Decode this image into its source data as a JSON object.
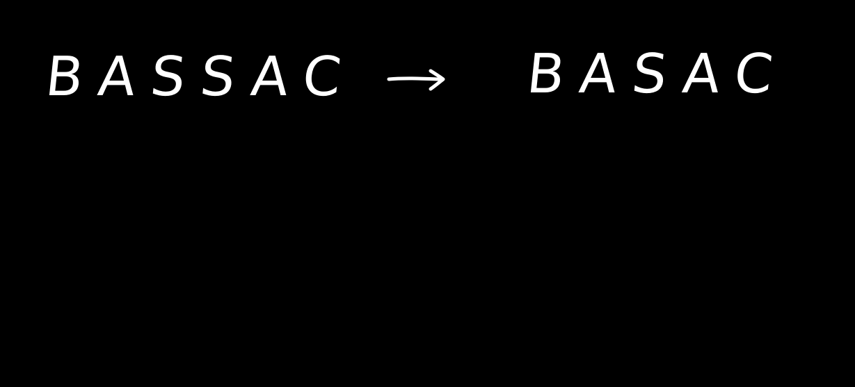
{
  "canvas": {
    "background": "#000000",
    "ink": "#ffffff"
  },
  "words": {
    "from": "BASSAC",
    "to": "BASAC"
  },
  "arrow": {
    "icon": "arrow-right-icon"
  }
}
